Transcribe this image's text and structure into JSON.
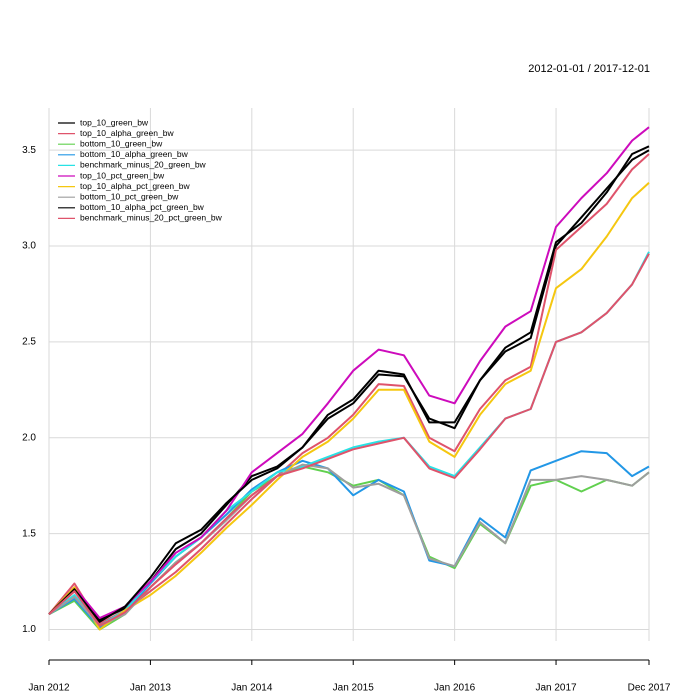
{
  "chart_data": {
    "type": "line",
    "title": "2012-01-01 / 2017-12-01",
    "x": [
      "2012-01",
      "2012-04",
      "2012-07",
      "2012-10",
      "2013-01",
      "2013-04",
      "2013-07",
      "2013-10",
      "2014-01",
      "2014-04",
      "2014-07",
      "2014-10",
      "2015-01",
      "2015-04",
      "2015-07",
      "2015-10",
      "2016-01",
      "2016-04",
      "2016-07",
      "2016-10",
      "2017-01",
      "2017-04",
      "2017-07",
      "2017-10",
      "2017-12"
    ],
    "xlim": [
      "2012-01",
      "2017-12"
    ],
    "xticks": [
      {
        "value": "2012-01",
        "label": "Jan 2012"
      },
      {
        "value": "2013-01",
        "label": "Jan 2013"
      },
      {
        "value": "2014-01",
        "label": "Jan 2014"
      },
      {
        "value": "2015-01",
        "label": "Jan 2015"
      },
      {
        "value": "2016-01",
        "label": "Jan 2016"
      },
      {
        "value": "2017-01",
        "label": "Jan 2017"
      },
      {
        "value": "2017-12",
        "label": "Dec 2017"
      }
    ],
    "ylim": [
      0.94,
      3.72
    ],
    "yticks": [
      {
        "value": 1,
        "label": "1.0"
      },
      {
        "value": 1.5,
        "label": "1.5"
      },
      {
        "value": 2,
        "label": "2.0"
      },
      {
        "value": 2.5,
        "label": "2.5"
      },
      {
        "value": 3,
        "label": "3.0"
      },
      {
        "value": 3.5,
        "label": "3.5"
      }
    ],
    "grid": true,
    "legend": "top-left",
    "series": [
      {
        "name": "top_10_green_bw",
        "color": "#000000",
        "values": [
          1.08,
          1.2,
          1.05,
          1.11,
          1.25,
          1.42,
          1.5,
          1.65,
          1.8,
          1.85,
          1.95,
          2.1,
          2.18,
          2.33,
          2.32,
          2.1,
          2.05,
          2.3,
          2.45,
          2.52,
          3.0,
          3.15,
          3.3,
          3.45,
          3.5
        ]
      },
      {
        "name": "top_10_alpha_green_bw",
        "color": "#DF536B",
        "values": [
          1.08,
          1.24,
          1.03,
          1.1,
          1.2,
          1.3,
          1.42,
          1.55,
          1.68,
          1.8,
          1.92,
          2.0,
          2.12,
          2.28,
          2.27,
          2.0,
          1.93,
          2.15,
          2.3,
          2.37,
          2.98,
          3.1,
          3.22,
          3.4,
          3.48
        ]
      },
      {
        "name": "bottom_10_green_bw",
        "color": "#61D04F",
        "values": [
          1.08,
          1.15,
          1.0,
          1.08,
          1.22,
          1.35,
          1.45,
          1.58,
          1.72,
          1.8,
          1.85,
          1.82,
          1.75,
          1.78,
          1.7,
          1.38,
          1.32,
          1.55,
          1.45,
          1.75,
          1.78,
          1.72,
          1.78,
          1.75,
          1.82
        ]
      },
      {
        "name": "bottom_10_alpha_green_bw",
        "color": "#2297E6",
        "values": [
          1.08,
          1.16,
          1.01,
          1.09,
          1.24,
          1.38,
          1.48,
          1.6,
          1.73,
          1.82,
          1.88,
          1.84,
          1.7,
          1.78,
          1.72,
          1.36,
          1.33,
          1.58,
          1.48,
          1.83,
          1.88,
          1.93,
          1.92,
          1.8,
          1.85
        ]
      },
      {
        "name": "benchmark_minus_20_green_bw",
        "color": "#28E2E5",
        "values": [
          1.08,
          1.18,
          1.02,
          1.1,
          1.25,
          1.38,
          1.48,
          1.62,
          1.72,
          1.82,
          1.85,
          1.9,
          1.95,
          1.98,
          2.0,
          1.85,
          1.8,
          1.95,
          2.1,
          2.15,
          2.5,
          2.55,
          2.65,
          2.8,
          2.97
        ]
      },
      {
        "name": "top_10_pct_green_bw",
        "color": "#CD0BBC",
        "values": [
          1.08,
          1.22,
          1.06,
          1.12,
          1.25,
          1.4,
          1.48,
          1.62,
          1.82,
          1.92,
          2.02,
          2.18,
          2.35,
          2.46,
          2.43,
          2.22,
          2.18,
          2.4,
          2.58,
          2.66,
          3.1,
          3.25,
          3.38,
          3.55,
          3.62
        ]
      },
      {
        "name": "top_10_alpha_pct_green_bw",
        "color": "#F5C710",
        "values": [
          1.08,
          1.22,
          1.0,
          1.1,
          1.18,
          1.28,
          1.4,
          1.53,
          1.65,
          1.78,
          1.9,
          1.98,
          2.1,
          2.25,
          2.25,
          1.98,
          1.9,
          2.12,
          2.28,
          2.35,
          2.78,
          2.88,
          3.05,
          3.25,
          3.33
        ]
      },
      {
        "name": "bottom_10_pct_green_bw",
        "color": "#9E9E9E",
        "values": [
          1.08,
          1.17,
          1.02,
          1.08,
          1.22,
          1.35,
          1.45,
          1.57,
          1.7,
          1.8,
          1.86,
          1.84,
          1.74,
          1.76,
          1.7,
          1.37,
          1.33,
          1.56,
          1.45,
          1.78,
          1.78,
          1.8,
          1.78,
          1.75,
          1.82
        ]
      },
      {
        "name": "bottom_10_alpha_pct_green_bw",
        "color": "#000000",
        "values": [
          1.08,
          1.21,
          1.04,
          1.12,
          1.27,
          1.45,
          1.52,
          1.66,
          1.78,
          1.84,
          1.95,
          2.12,
          2.2,
          2.35,
          2.33,
          2.08,
          2.08,
          2.3,
          2.47,
          2.55,
          3.02,
          3.12,
          3.28,
          3.48,
          3.52
        ]
      },
      {
        "name": "benchmark_minus_20_pct_green_bw",
        "color": "#DF536B",
        "values": [
          1.08,
          1.2,
          1.02,
          1.09,
          1.22,
          1.34,
          1.45,
          1.58,
          1.7,
          1.8,
          1.84,
          1.89,
          1.94,
          1.97,
          2.0,
          1.84,
          1.79,
          1.94,
          2.1,
          2.15,
          2.5,
          2.55,
          2.65,
          2.8,
          2.96
        ]
      }
    ]
  }
}
